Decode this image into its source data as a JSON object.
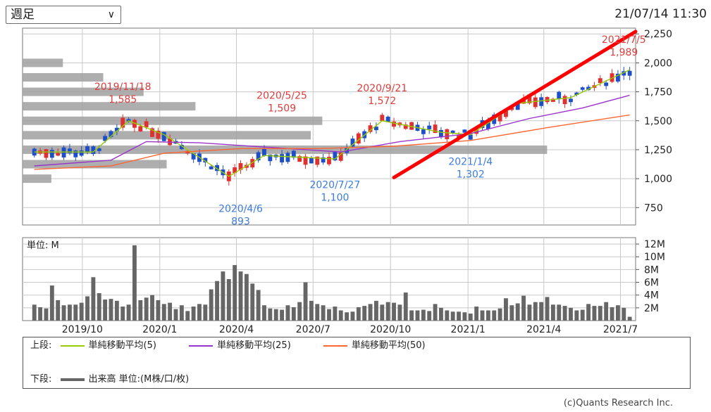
{
  "header": {
    "period_selected": "週足",
    "timestamp": "21/07/14 11:30"
  },
  "chart_data": [
    {
      "type": "candlestick",
      "panel": "price",
      "y_ticks": [
        "2,250",
        "2,000",
        "1,750",
        "1,500",
        "1,250",
        "1,000",
        "750"
      ],
      "y_tick_values": [
        2250,
        2000,
        1750,
        1500,
        1250,
        1000,
        750
      ],
      "ylim": [
        600,
        2300
      ],
      "x_range": [
        "2019-07-22",
        "2021-07-19"
      ],
      "grid": true,
      "series": [
        {
          "name": "単純移動平均(5)",
          "color": "#99cc00",
          "points": [
            [
              "2019-08-05",
              1230
            ],
            [
              "2019-10-14",
              1230
            ],
            [
              "2019-11-25",
              1500
            ],
            [
              "2020-01-06",
              1380
            ],
            [
              "2020-03-23",
              1020
            ],
            [
              "2020-05-04",
              1200
            ],
            [
              "2020-07-27",
              1170
            ],
            [
              "2020-09-21",
              1500
            ],
            [
              "2020-11-30",
              1400
            ],
            [
              "2021-01-04",
              1380
            ],
            [
              "2021-03-01",
              1650
            ],
            [
              "2021-05-03",
              1700
            ],
            [
              "2021-07-12",
              1940
            ]
          ]
        },
        {
          "name": "単純移動平均(25)",
          "color": "#9933cc",
          "points": [
            [
              "2019-08-05",
              1110
            ],
            [
              "2019-11-04",
              1160
            ],
            [
              "2019-12-16",
              1320
            ],
            [
              "2020-02-17",
              1310
            ],
            [
              "2020-05-11",
              1270
            ],
            [
              "2020-08-03",
              1230
            ],
            [
              "2020-10-12",
              1320
            ],
            [
              "2021-01-04",
              1390
            ],
            [
              "2021-03-15",
              1520
            ],
            [
              "2021-05-17",
              1610
            ],
            [
              "2021-07-12",
              1720
            ]
          ]
        },
        {
          "name": "単純移動平均(50)",
          "color": "#ff6633",
          "points": [
            [
              "2019-08-05",
              1080
            ],
            [
              "2019-11-04",
              1110
            ],
            [
              "2020-01-06",
              1220
            ],
            [
              "2020-04-06",
              1260
            ],
            [
              "2020-07-06",
              1260
            ],
            [
              "2020-10-05",
              1280
            ],
            [
              "2021-01-04",
              1330
            ],
            [
              "2021-04-05",
              1440
            ],
            [
              "2021-07-12",
              1550
            ]
          ]
        }
      ],
      "candles_summary": "weekly candles (red = up, blue = down)",
      "volume_profile": {
        "price_buckets": [
          2000,
          1875,
          1750,
          1625,
          1500,
          1375,
          1250,
          1125,
          1000
        ],
        "relative_volume": [
          0.07,
          0.14,
          0.21,
          0.3,
          0.52,
          0.5,
          0.91,
          0.25,
          0.05
        ]
      },
      "trendline": {
        "from": [
          "2020-10-05",
          1010
        ],
        "to": [
          "2021-07-19",
          2270
        ],
        "color": "#ff0000"
      },
      "annotations": [
        {
          "date_label": "2019/11/18",
          "value": "1,585",
          "x": "2019-11-18",
          "y": 1585,
          "color": "#e03c3c",
          "kind": "high"
        },
        {
          "date_label": "2020/5/25",
          "value": "1,509",
          "x": "2020-05-25",
          "y": 1509,
          "color": "#e03c3c",
          "kind": "high"
        },
        {
          "date_label": "2020/9/21",
          "value": "1,572",
          "x": "2020-09-21",
          "y": 1572,
          "color": "#e03c3c",
          "kind": "high"
        },
        {
          "date_label": "2021/7/5",
          "value": "1,989",
          "x": "2021-07-05",
          "y": 1989,
          "color": "#e03c3c",
          "kind": "high"
        },
        {
          "date_label": "2020/4/6",
          "value": "893",
          "x": "2020-04-06",
          "y": 893,
          "color": "#3c7ce0",
          "kind": "low"
        },
        {
          "date_label": "2020/7/27",
          "value": "1,100",
          "x": "2020-07-27",
          "y": 1100,
          "color": "#3c7ce0",
          "kind": "low"
        },
        {
          "date_label": "2021/1/4",
          "value": "1,302",
          "x": "2021-01-04",
          "y": 1302,
          "color": "#3c7ce0",
          "kind": "low"
        }
      ]
    },
    {
      "type": "bar",
      "panel": "volume",
      "unit_label": "単位: M",
      "y_ticks": [
        "12M",
        "10M",
        "8M",
        "6M",
        "4M",
        "2M"
      ],
      "y_tick_values": [
        12,
        10,
        8,
        6,
        4,
        2
      ],
      "ylim": [
        0,
        13
      ],
      "x_ticks": [
        "2019/10",
        "2020/1",
        "2020/4",
        "2020/7",
        "2020/10",
        "2021/1",
        "2021/4",
        "2021/7"
      ],
      "x_tick_dates": [
        "2019-10-01",
        "2020-01-01",
        "2020-04-01",
        "2020-07-01",
        "2020-10-01",
        "2021-01-01",
        "2021-04-01",
        "2021-07-01"
      ],
      "start_date": "2019-08-05",
      "values": [
        2.5,
        2.1,
        1.9,
        5.5,
        3.2,
        2.4,
        2.5,
        2.5,
        2.8,
        3.8,
        6.8,
        4.3,
        3.3,
        3.4,
        3.1,
        2.2,
        2.5,
        11.8,
        3.2,
        3.6,
        4.0,
        3.2,
        2.6,
        2.8,
        1.8,
        2.4,
        1.5,
        2.2,
        2.6,
        2.5,
        4.9,
        6.2,
        7.7,
        6.5,
        8.7,
        7.7,
        7.3,
        5.8,
        4.8,
        2.4,
        1.9,
        1.8,
        1.7,
        2.4,
        2.1,
        2.9,
        6.0,
        3.1,
        2.6,
        2.4,
        1.8,
        2.2,
        1.6,
        1.3,
        1.4,
        2.1,
        2.3,
        2.6,
        3.1,
        2.5,
        2.9,
        2.8,
        2.5,
        4.4,
        1.6,
        1.6,
        1.7,
        1.5,
        2.6,
        2.0,
        1.6,
        1.4,
        1.4,
        1.3,
        1.1,
        2.2,
        1.6,
        1.6,
        1.6,
        1.9,
        3.5,
        2.4,
        2.7,
        3.9,
        2.5,
        2.9,
        2.9,
        3.7,
        2.5,
        2.5,
        2.3,
        2.0,
        1.6,
        1.7,
        2.6,
        2.3,
        2.3,
        2.9,
        2.1,
        2.4,
        2.0,
        0.6
      ]
    }
  ],
  "legend": {
    "upper_label": "上段:",
    "lower_label": "下段:",
    "items": [
      {
        "label": "単純移動平均(5)",
        "color": "#99cc00"
      },
      {
        "label": "単純移動平均(25)",
        "color": "#9933cc"
      },
      {
        "label": "単純移動平均(50)",
        "color": "#ff6633"
      }
    ],
    "volume_item": {
      "label": "出来高 単位:(M株/口/枚)",
      "color": "#666666"
    }
  },
  "footer": {
    "copyright": "(c)Quants Research Inc."
  }
}
